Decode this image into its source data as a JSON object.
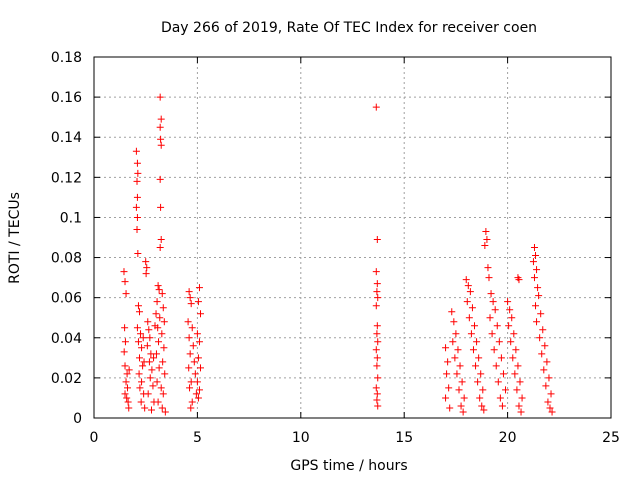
{
  "chart_data": {
    "type": "scatter",
    "title": "Day 266 of 2019, Rate Of TEC Index for receiver coen",
    "xlabel": "GPS time / hours",
    "ylabel": "ROTI / TECUs",
    "xlim": [
      0,
      25
    ],
    "ylim": [
      0,
      0.18
    ],
    "x_ticks": [
      0,
      5,
      10,
      15,
      20,
      25
    ],
    "x_tick_labels": [
      "0",
      "5",
      "10",
      "15",
      "20",
      "25"
    ],
    "y_ticks": [
      0,
      0.02,
      0.04,
      0.06,
      0.08,
      0.1,
      0.12,
      0.14,
      0.16,
      0.18
    ],
    "y_tick_labels": [
      "0",
      "0.02",
      "0.04",
      "0.06",
      "0.08",
      "0.1",
      "0.12",
      "0.14",
      "0.16",
      "0.18"
    ],
    "grid": true,
    "marker": "+",
    "marker_color": "#ff0000",
    "series": [
      {
        "name": "ROTI",
        "points": [
          [
            1.45,
            0.073
          ],
          [
            1.5,
            0.068
          ],
          [
            1.55,
            0.062
          ],
          [
            1.48,
            0.045
          ],
          [
            1.52,
            0.038
          ],
          [
            1.46,
            0.033
          ],
          [
            1.5,
            0.026
          ],
          [
            1.6,
            0.022
          ],
          [
            1.55,
            0.018
          ],
          [
            1.62,
            0.015
          ],
          [
            1.5,
            0.012
          ],
          [
            1.58,
            0.01
          ],
          [
            1.65,
            0.008
          ],
          [
            1.7,
            0.024
          ],
          [
            1.68,
            0.005
          ],
          [
            2.05,
            0.133
          ],
          [
            2.1,
            0.127
          ],
          [
            2.12,
            0.122
          ],
          [
            2.08,
            0.118
          ],
          [
            2.1,
            0.11
          ],
          [
            2.05,
            0.105
          ],
          [
            2.1,
            0.1
          ],
          [
            2.08,
            0.094
          ],
          [
            2.12,
            0.082
          ],
          [
            2.15,
            0.056
          ],
          [
            2.2,
            0.053
          ],
          [
            2.1,
            0.045
          ],
          [
            2.25,
            0.042
          ],
          [
            2.15,
            0.038
          ],
          [
            2.3,
            0.035
          ],
          [
            2.2,
            0.03
          ],
          [
            2.35,
            0.026
          ],
          [
            2.18,
            0.022
          ],
          [
            2.3,
            0.018
          ],
          [
            2.22,
            0.015
          ],
          [
            2.4,
            0.012
          ],
          [
            2.28,
            0.008
          ],
          [
            2.45,
            0.005
          ],
          [
            2.38,
            0.04
          ],
          [
            2.42,
            0.028
          ],
          [
            2.5,
            0.078
          ],
          [
            2.55,
            0.075
          ],
          [
            2.52,
            0.072
          ],
          [
            2.6,
            0.048
          ],
          [
            2.65,
            0.044
          ],
          [
            2.7,
            0.04
          ],
          [
            2.58,
            0.036
          ],
          [
            2.75,
            0.032
          ],
          [
            2.68,
            0.028
          ],
          [
            2.8,
            0.024
          ],
          [
            2.72,
            0.02
          ],
          [
            2.85,
            0.016
          ],
          [
            2.62,
            0.012
          ],
          [
            2.9,
            0.008
          ],
          [
            2.78,
            0.004
          ],
          [
            2.95,
            0.046
          ],
          [
            2.88,
            0.03
          ],
          [
            3.2,
            0.16
          ],
          [
            3.25,
            0.149
          ],
          [
            3.2,
            0.145
          ],
          [
            3.22,
            0.139
          ],
          [
            3.25,
            0.136
          ],
          [
            3.2,
            0.119
          ],
          [
            3.22,
            0.105
          ],
          [
            3.25,
            0.089
          ],
          [
            3.2,
            0.085
          ],
          [
            3.1,
            0.066
          ],
          [
            3.15,
            0.064
          ],
          [
            3.3,
            0.062
          ],
          [
            3.05,
            0.058
          ],
          [
            3.35,
            0.055
          ],
          [
            3.0,
            0.052
          ],
          [
            3.18,
            0.05
          ],
          [
            3.4,
            0.048
          ],
          [
            3.08,
            0.045
          ],
          [
            3.28,
            0.042
          ],
          [
            3.12,
            0.038
          ],
          [
            3.38,
            0.035
          ],
          [
            3.02,
            0.032
          ],
          [
            3.32,
            0.028
          ],
          [
            3.15,
            0.025
          ],
          [
            3.42,
            0.022
          ],
          [
            3.05,
            0.018
          ],
          [
            3.25,
            0.015
          ],
          [
            3.35,
            0.012
          ],
          [
            3.1,
            0.008
          ],
          [
            3.3,
            0.005
          ],
          [
            3.45,
            0.003
          ],
          [
            4.6,
            0.063
          ],
          [
            4.65,
            0.06
          ],
          [
            4.7,
            0.057
          ],
          [
            4.55,
            0.048
          ],
          [
            4.75,
            0.045
          ],
          [
            4.6,
            0.04
          ],
          [
            4.8,
            0.036
          ],
          [
            4.65,
            0.032
          ],
          [
            4.85,
            0.028
          ],
          [
            4.58,
            0.025
          ],
          [
            4.9,
            0.022
          ],
          [
            4.7,
            0.018
          ],
          [
            4.62,
            0.015
          ],
          [
            4.95,
            0.012
          ],
          [
            4.75,
            0.008
          ],
          [
            4.68,
            0.005
          ],
          [
            5.1,
            0.065
          ],
          [
            5.05,
            0.058
          ],
          [
            5.15,
            0.052
          ],
          [
            5.0,
            0.042
          ],
          [
            5.1,
            0.038
          ],
          [
            5.05,
            0.03
          ],
          [
            5.15,
            0.025
          ],
          [
            5.0,
            0.018
          ],
          [
            5.1,
            0.014
          ],
          [
            5.05,
            0.01
          ],
          [
            13.65,
            0.155
          ],
          [
            13.7,
            0.089
          ],
          [
            13.65,
            0.073
          ],
          [
            13.7,
            0.067
          ],
          [
            13.68,
            0.063
          ],
          [
            13.72,
            0.06
          ],
          [
            13.65,
            0.056
          ],
          [
            13.7,
            0.046
          ],
          [
            13.68,
            0.042
          ],
          [
            13.72,
            0.038
          ],
          [
            13.65,
            0.034
          ],
          [
            13.7,
            0.03
          ],
          [
            13.68,
            0.026
          ],
          [
            13.72,
            0.02
          ],
          [
            13.65,
            0.015
          ],
          [
            13.7,
            0.012
          ],
          [
            13.68,
            0.009
          ],
          [
            13.72,
            0.006
          ],
          [
            17.0,
            0.035
          ],
          [
            17.1,
            0.028
          ],
          [
            17.05,
            0.022
          ],
          [
            17.15,
            0.015
          ],
          [
            17.0,
            0.01
          ],
          [
            17.2,
            0.005
          ],
          [
            17.3,
            0.053
          ],
          [
            17.4,
            0.048
          ],
          [
            17.5,
            0.042
          ],
          [
            17.35,
            0.038
          ],
          [
            17.6,
            0.034
          ],
          [
            17.45,
            0.03
          ],
          [
            17.7,
            0.026
          ],
          [
            17.55,
            0.022
          ],
          [
            17.8,
            0.018
          ],
          [
            17.65,
            0.014
          ],
          [
            17.9,
            0.01
          ],
          [
            17.75,
            0.006
          ],
          [
            17.85,
            0.003
          ],
          [
            18.0,
            0.069
          ],
          [
            18.1,
            0.066
          ],
          [
            18.2,
            0.063
          ],
          [
            18.05,
            0.058
          ],
          [
            18.3,
            0.055
          ],
          [
            18.15,
            0.05
          ],
          [
            18.4,
            0.046
          ],
          [
            18.25,
            0.042
          ],
          [
            18.5,
            0.038
          ],
          [
            18.35,
            0.034
          ],
          [
            18.6,
            0.03
          ],
          [
            18.45,
            0.026
          ],
          [
            18.7,
            0.022
          ],
          [
            18.55,
            0.018
          ],
          [
            18.8,
            0.014
          ],
          [
            18.65,
            0.01
          ],
          [
            18.75,
            0.006
          ],
          [
            18.85,
            0.004
          ],
          [
            18.95,
            0.093
          ],
          [
            19.0,
            0.089
          ],
          [
            18.9,
            0.086
          ],
          [
            19.05,
            0.075
          ],
          [
            19.1,
            0.07
          ],
          [
            19.2,
            0.062
          ],
          [
            19.3,
            0.058
          ],
          [
            19.4,
            0.054
          ],
          [
            19.15,
            0.05
          ],
          [
            19.5,
            0.046
          ],
          [
            19.25,
            0.042
          ],
          [
            19.6,
            0.038
          ],
          [
            19.35,
            0.034
          ],
          [
            19.7,
            0.03
          ],
          [
            19.45,
            0.026
          ],
          [
            19.8,
            0.022
          ],
          [
            19.55,
            0.018
          ],
          [
            19.9,
            0.014
          ],
          [
            19.65,
            0.01
          ],
          [
            19.75,
            0.006
          ],
          [
            20.0,
            0.058
          ],
          [
            20.1,
            0.054
          ],
          [
            20.2,
            0.05
          ],
          [
            20.05,
            0.046
          ],
          [
            20.3,
            0.042
          ],
          [
            20.15,
            0.038
          ],
          [
            20.4,
            0.034
          ],
          [
            20.25,
            0.03
          ],
          [
            20.5,
            0.026
          ],
          [
            20.35,
            0.022
          ],
          [
            20.6,
            0.018
          ],
          [
            20.45,
            0.014
          ],
          [
            20.7,
            0.01
          ],
          [
            20.55,
            0.006
          ],
          [
            20.65,
            0.003
          ],
          [
            20.5,
            0.07
          ],
          [
            20.55,
            0.069
          ],
          [
            21.3,
            0.085
          ],
          [
            21.35,
            0.081
          ],
          [
            21.25,
            0.078
          ],
          [
            21.4,
            0.074
          ],
          [
            21.3,
            0.07
          ],
          [
            21.45,
            0.065
          ],
          [
            21.5,
            0.061
          ],
          [
            21.35,
            0.056
          ],
          [
            21.6,
            0.052
          ],
          [
            21.4,
            0.048
          ],
          [
            21.7,
            0.044
          ],
          [
            21.55,
            0.04
          ],
          [
            21.8,
            0.036
          ],
          [
            21.65,
            0.032
          ],
          [
            21.9,
            0.028
          ],
          [
            21.75,
            0.024
          ],
          [
            22.0,
            0.02
          ],
          [
            21.85,
            0.016
          ],
          [
            22.1,
            0.012
          ],
          [
            21.95,
            0.008
          ],
          [
            22.05,
            0.005
          ],
          [
            22.15,
            0.003
          ]
        ]
      }
    ]
  }
}
